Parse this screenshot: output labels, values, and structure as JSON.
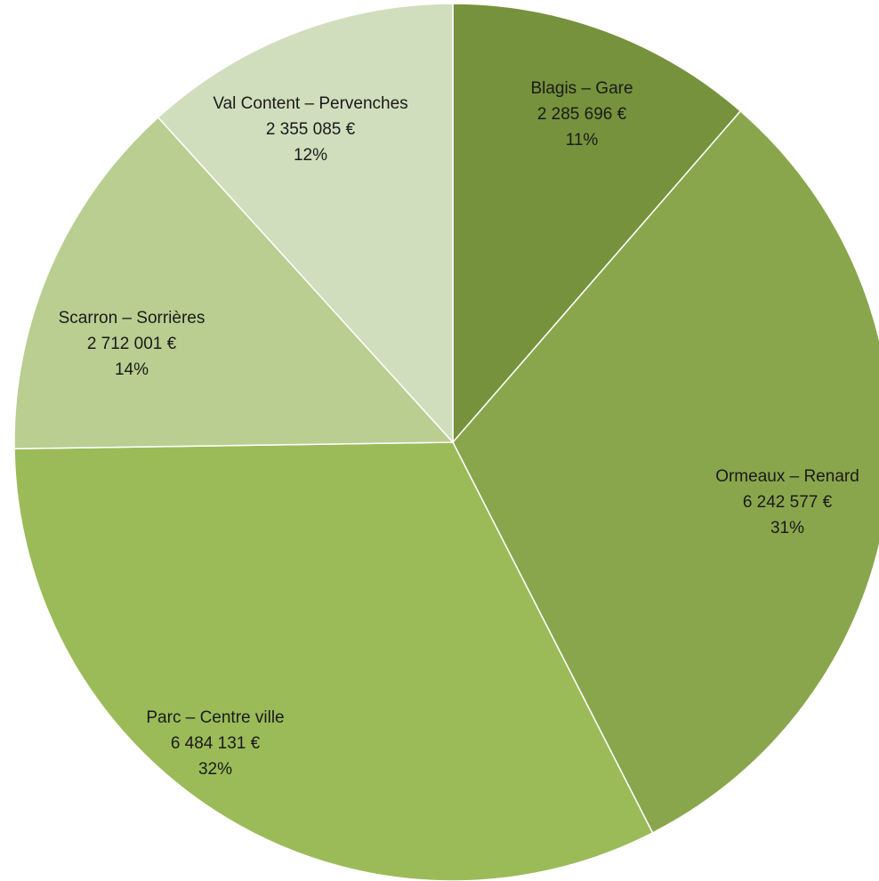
{
  "chart_data": {
    "type": "pie",
    "slices": [
      {
        "name": "Blagis – Gare",
        "value": 2285696,
        "value_label": "2 285 696 €",
        "percent_label": "11%",
        "color": "#76923C"
      },
      {
        "name": "Ormeaux – Renard",
        "value": 6242577,
        "value_label": "6 242 577 €",
        "percent_label": "31%",
        "color": "#8AA64C"
      },
      {
        "name": "Parc – Centre ville",
        "value": 6484131,
        "value_label": "6 484 131 €",
        "percent_label": "32%",
        "color": "#9BBB59"
      },
      {
        "name": "Scarron – Sorrières",
        "value": 2712001,
        "value_label": "2 712 001 €",
        "percent_label": "14%",
        "color": "#B9CE90"
      },
      {
        "name": "Val Content – Pervenches",
        "value": 2355085,
        "value_label": "2 355 085 €",
        "percent_label": "12%",
        "color": "#D1DEBD"
      }
    ]
  }
}
